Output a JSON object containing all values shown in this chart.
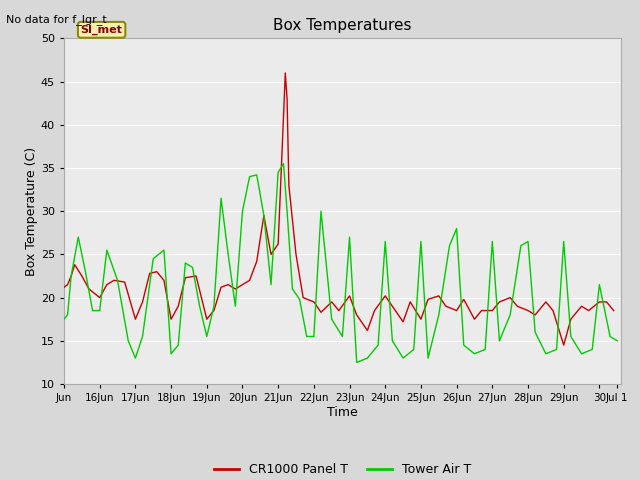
{
  "title": "Box Temperatures",
  "xlabel": "Time",
  "ylabel": "Box Temperature (C)",
  "note": "No data for f_lgr_t",
  "si_label": "SI_met",
  "ylim": [
    10,
    50
  ],
  "red_line_color": "#cc0000",
  "green_line_color": "#00cc00",
  "cr1000_label": "CR1000 Panel T",
  "tower_label": "Tower Air T",
  "x_tick_positions": [
    15,
    16,
    17,
    18,
    19,
    20,
    21,
    22,
    23,
    24,
    25,
    26,
    27,
    28,
    29,
    30,
    30.5
  ],
  "x_tick_labels": [
    "Jun",
    "16Jun",
    "17Jun",
    "18Jun",
    "19Jun",
    "20Jun",
    "21Jun",
    "22Jun",
    "23Jun",
    "24Jun",
    "25Jun",
    "26Jun",
    "27Jun",
    "28Jun",
    "29Jun",
    "30",
    "Jul 1"
  ],
  "xlim": [
    15,
    30.6
  ],
  "red_x": [
    15.0,
    15.1,
    15.2,
    15.3,
    15.5,
    15.7,
    16.0,
    16.2,
    16.4,
    16.7,
    17.0,
    17.2,
    17.4,
    17.6,
    17.8,
    18.0,
    18.2,
    18.4,
    18.7,
    19.0,
    19.2,
    19.4,
    19.6,
    19.8,
    20.0,
    20.2,
    20.4,
    20.6,
    20.8,
    21.0,
    21.1,
    21.2,
    21.25,
    21.3,
    21.5,
    21.7,
    22.0,
    22.2,
    22.5,
    22.7,
    23.0,
    23.2,
    23.5,
    23.7,
    24.0,
    24.2,
    24.5,
    24.7,
    25.0,
    25.2,
    25.5,
    25.7,
    26.0,
    26.2,
    26.5,
    26.7,
    27.0,
    27.2,
    27.5,
    27.7,
    28.0,
    28.2,
    28.5,
    28.7,
    29.0,
    29.2,
    29.3,
    29.5,
    29.7,
    30.0,
    30.2,
    30.4
  ],
  "red_y": [
    21.2,
    21.5,
    22.5,
    23.8,
    22.5,
    21.0,
    20.0,
    21.5,
    22.0,
    21.8,
    17.5,
    19.5,
    22.8,
    23.0,
    22.0,
    17.5,
    19.0,
    22.3,
    22.5,
    17.5,
    18.5,
    21.2,
    21.5,
    21.0,
    21.5,
    22.0,
    24.2,
    29.5,
    25.0,
    26.2,
    36.0,
    46.0,
    43.0,
    33.0,
    25.0,
    20.0,
    19.5,
    18.3,
    19.5,
    18.5,
    20.2,
    18.0,
    16.2,
    18.5,
    20.2,
    19.0,
    17.2,
    19.5,
    17.5,
    19.8,
    20.2,
    19.0,
    18.5,
    19.8,
    17.5,
    18.5,
    18.5,
    19.5,
    20.0,
    19.0,
    18.5,
    18.0,
    19.5,
    18.5,
    14.5,
    17.5,
    18.0,
    19.0,
    18.5,
    19.5,
    19.5,
    18.5
  ],
  "green_x": [
    15.0,
    15.1,
    15.2,
    15.4,
    15.6,
    15.8,
    16.0,
    16.2,
    16.5,
    16.8,
    17.0,
    17.2,
    17.5,
    17.8,
    18.0,
    18.2,
    18.4,
    18.6,
    18.8,
    19.0,
    19.2,
    19.4,
    19.6,
    19.8,
    20.0,
    20.2,
    20.4,
    20.6,
    20.8,
    21.0,
    21.15,
    21.25,
    21.4,
    21.6,
    21.8,
    22.0,
    22.2,
    22.5,
    22.8,
    23.0,
    23.2,
    23.5,
    23.8,
    24.0,
    24.2,
    24.5,
    24.8,
    25.0,
    25.2,
    25.5,
    25.8,
    26.0,
    26.2,
    26.5,
    26.8,
    27.0,
    27.2,
    27.5,
    27.8,
    28.0,
    28.2,
    28.5,
    28.8,
    29.0,
    29.2,
    29.5,
    29.8,
    30.0,
    30.3,
    30.5
  ],
  "green_y": [
    17.5,
    18.0,
    22.5,
    27.0,
    23.0,
    18.5,
    18.5,
    25.5,
    22.0,
    15.0,
    13.0,
    15.5,
    24.5,
    25.5,
    13.5,
    14.5,
    24.0,
    23.5,
    19.0,
    15.5,
    19.0,
    31.5,
    25.0,
    19.0,
    30.0,
    34.0,
    34.2,
    29.5,
    21.5,
    34.5,
    35.5,
    30.0,
    21.0,
    19.8,
    15.5,
    15.5,
    30.0,
    17.5,
    15.5,
    27.0,
    12.5,
    13.0,
    14.5,
    26.5,
    15.0,
    13.0,
    14.0,
    26.5,
    13.0,
    18.0,
    26.0,
    28.0,
    14.5,
    13.5,
    14.0,
    26.5,
    15.0,
    18.0,
    26.0,
    26.5,
    16.0,
    13.5,
    14.0,
    26.5,
    15.5,
    13.5,
    14.0,
    21.5,
    15.5,
    15.0
  ]
}
